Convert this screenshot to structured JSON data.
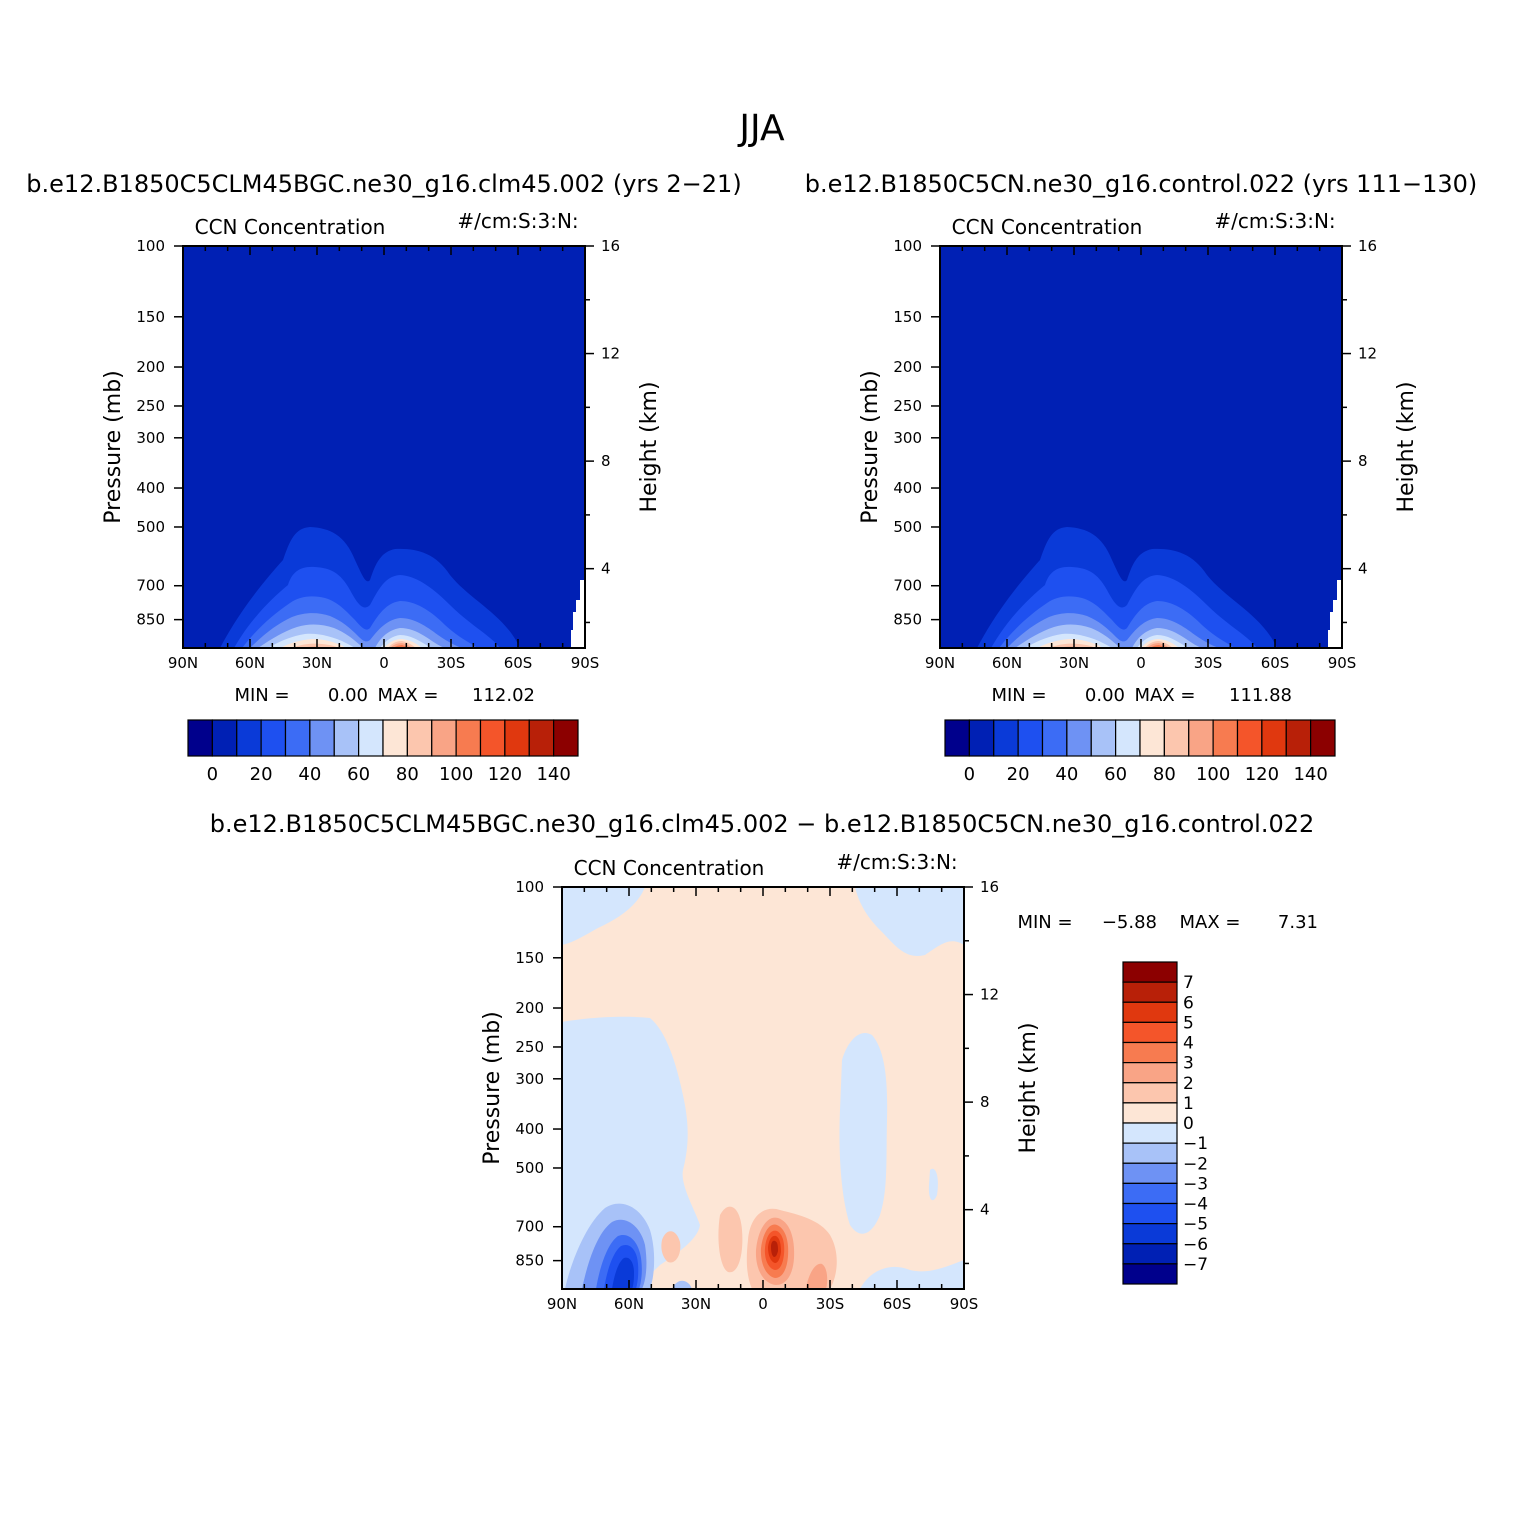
{
  "figure": {
    "title": "JJA",
    "diff_title": "b.e12.B1850C5CLM45BGC.ne30_g16.clm45.002 − b.e12.B1850C5CN.ne30_g16.control.022"
  },
  "colors": {
    "frame": "#000000",
    "page": "#ffffff",
    "palette": [
      "#00008c",
      "#0020b4",
      "#0a3ad8",
      "#1e50f0",
      "#3c6cf5",
      "#6e92f4",
      "#a8c2f8",
      "#d4e6fd",
      "#fde6d6",
      "#fcc6ae",
      "#f9a486",
      "#f77b50",
      "#f4552a",
      "#e0380f",
      "#b82008",
      "#8c0000"
    ]
  },
  "chart_data": [
    {
      "id": "model-a",
      "type": "heatmap",
      "case_title": "b.e12.B1850C5CLM45BGC.ne30_g16.clm45.002 (yrs 2−21)",
      "left_title": "CCN Concentration",
      "units": "#/cm:S:3:N:",
      "ylabel": "Pressure (mb)",
      "ylabel_right": "Height (km)",
      "xticks": [
        "90N",
        "60N",
        "30N",
        "0",
        "30S",
        "60S",
        "90S"
      ],
      "yticks": [
        "100",
        "150",
        "200",
        "250",
        "300",
        "400",
        "500",
        "700",
        "850"
      ],
      "yticks_right": [
        "16",
        "12",
        "8",
        "4"
      ],
      "min_label": "MIN =",
      "min_value": "0.00",
      "max_label": "MAX =",
      "max_value": "112.02",
      "colorbar_labels": [
        "0",
        "20",
        "40",
        "60",
        "80",
        "100",
        "120",
        "140"
      ],
      "contour_levels": [
        0,
        10,
        20,
        30,
        40,
        50,
        60,
        70,
        80,
        90,
        100,
        110,
        120,
        130,
        140
      ]
    },
    {
      "id": "model-b",
      "type": "heatmap",
      "case_title": "b.e12.B1850C5CN.ne30_g16.control.022 (yrs 111−130)",
      "left_title": "CCN Concentration",
      "units": "#/cm:S:3:N:",
      "ylabel": "Pressure (mb)",
      "ylabel_right": "Height (km)",
      "xticks": [
        "90N",
        "60N",
        "30N",
        "0",
        "30S",
        "60S",
        "90S"
      ],
      "yticks": [
        "100",
        "150",
        "200",
        "250",
        "300",
        "400",
        "500",
        "700",
        "850"
      ],
      "yticks_right": [
        "16",
        "12",
        "8",
        "4"
      ],
      "min_label": "MIN =",
      "min_value": "0.00",
      "max_label": "MAX =",
      "max_value": "111.88",
      "colorbar_labels": [
        "0",
        "20",
        "40",
        "60",
        "80",
        "100",
        "120",
        "140"
      ],
      "contour_levels": [
        0,
        10,
        20,
        30,
        40,
        50,
        60,
        70,
        80,
        90,
        100,
        110,
        120,
        130,
        140
      ]
    },
    {
      "id": "difference",
      "type": "heatmap",
      "left_title": "CCN Concentration",
      "units": "#/cm:S:3:N:",
      "ylabel": "Pressure (mb)",
      "ylabel_right": "Height (km)",
      "xticks": [
        "90N",
        "60N",
        "30N",
        "0",
        "30S",
        "60S",
        "90S"
      ],
      "yticks": [
        "100",
        "150",
        "200",
        "250",
        "300",
        "400",
        "500",
        "700",
        "850"
      ],
      "yticks_right": [
        "16",
        "12",
        "8",
        "4"
      ],
      "min_label": "MIN =",
      "min_value": "−5.88",
      "max_label": "MAX =",
      "max_value": "7.31",
      "colorbar_labels": [
        "7",
        "6",
        "5",
        "4",
        "3",
        "2",
        "1",
        "0",
        "−1",
        "−2",
        "−3",
        "−4",
        "−5",
        "−6",
        "−7"
      ],
      "contour_levels": [
        -7,
        -6,
        -5,
        -4,
        -3,
        -2,
        -1,
        0,
        1,
        2,
        3,
        4,
        5,
        6,
        7
      ]
    }
  ]
}
